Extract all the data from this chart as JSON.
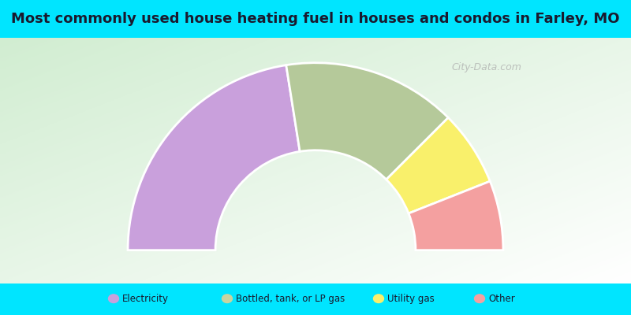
{
  "title": "Most commonly used house heating fuel in houses and condos in Farley, MO",
  "title_fontsize": 13,
  "title_color": "#1a1a2e",
  "background_color": "#00e5ff",
  "segments": [
    {
      "label": "Electricity",
      "value": 45,
      "color": "#c9a0dc"
    },
    {
      "label": "Bottled, tank, or LP gas",
      "value": 30,
      "color": "#b5c99a"
    },
    {
      "label": "Utility gas",
      "value": 13,
      "color": "#f9f06b"
    },
    {
      "label": "Other",
      "value": 12,
      "color": "#f4a0a0"
    }
  ],
  "legend_labels": [
    "Electricity",
    "Bottled, tank, or LP gas",
    "Utility gas",
    "Other"
  ],
  "legend_colors": [
    "#c9a0dc",
    "#c8d4a0",
    "#f9f06b",
    "#f4a0a0"
  ],
  "legend_text_color": "#1a1a2e",
  "watermark": "City-Data.com",
  "title_bar_height": 0.12,
  "legend_bar_height": 0.1,
  "inner_r": 0.48,
  "outer_r": 0.9
}
